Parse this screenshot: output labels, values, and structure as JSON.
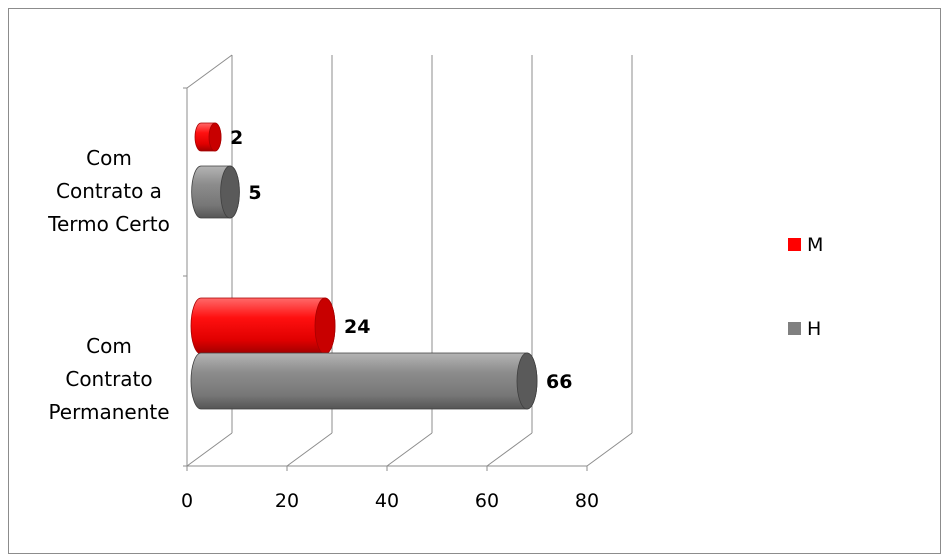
{
  "chart_data": {
    "type": "bar",
    "orientation": "horizontal",
    "style": "3d-cylinder",
    "categories": [
      "Com Contrato a Termo Certo",
      "Com Contrato Permanente"
    ],
    "category_lines": [
      [
        "Com",
        "Contrato a",
        "Termo Certo"
      ],
      [
        "Com",
        "Contrato",
        "Permanente"
      ]
    ],
    "series": [
      {
        "name": "M",
        "values": [
          2,
          24
        ],
        "color": "#ff0000"
      },
      {
        "name": "H",
        "values": [
          5,
          66
        ],
        "color": "#808080"
      }
    ],
    "xlim": [
      0,
      80
    ],
    "xticks": [
      0,
      20,
      40,
      60,
      80
    ],
    "xtick_labels": [
      "0",
      "20",
      "40",
      "60",
      "80"
    ],
    "grid": true,
    "legend_position": "right",
    "title": "",
    "xlabel": "",
    "ylabel": ""
  }
}
